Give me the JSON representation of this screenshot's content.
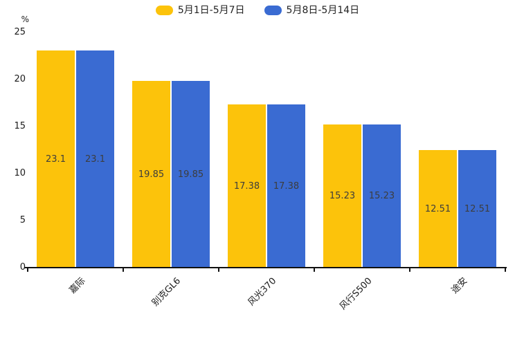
{
  "chart_data": {
    "type": "bar",
    "categories": [
      "嘉际",
      "别克GL6",
      "风光370",
      "风行S500",
      "途安"
    ],
    "series": [
      {
        "name": "5月1日-5月7日",
        "color": "#FCC30B",
        "values": [
          23.1,
          19.85,
          17.38,
          15.23,
          12.51
        ]
      },
      {
        "name": "5月8日-5月14日",
        "color": "#3A6BD2",
        "values": [
          23.1,
          19.85,
          17.38,
          15.23,
          12.51
        ]
      }
    ],
    "title": "",
    "xlabel": "",
    "ylabel": "%",
    "ylim": [
      0,
      25
    ],
    "yticks": [
      0,
      5,
      10,
      15,
      20,
      25
    ],
    "grid": false,
    "legend_position": "top",
    "value_labels": "inside-center",
    "colors": {
      "axis": "#111111",
      "tick_text": "#1a1a1a",
      "value_text": "#3d3d3d",
      "background": "#ffffff"
    }
  }
}
